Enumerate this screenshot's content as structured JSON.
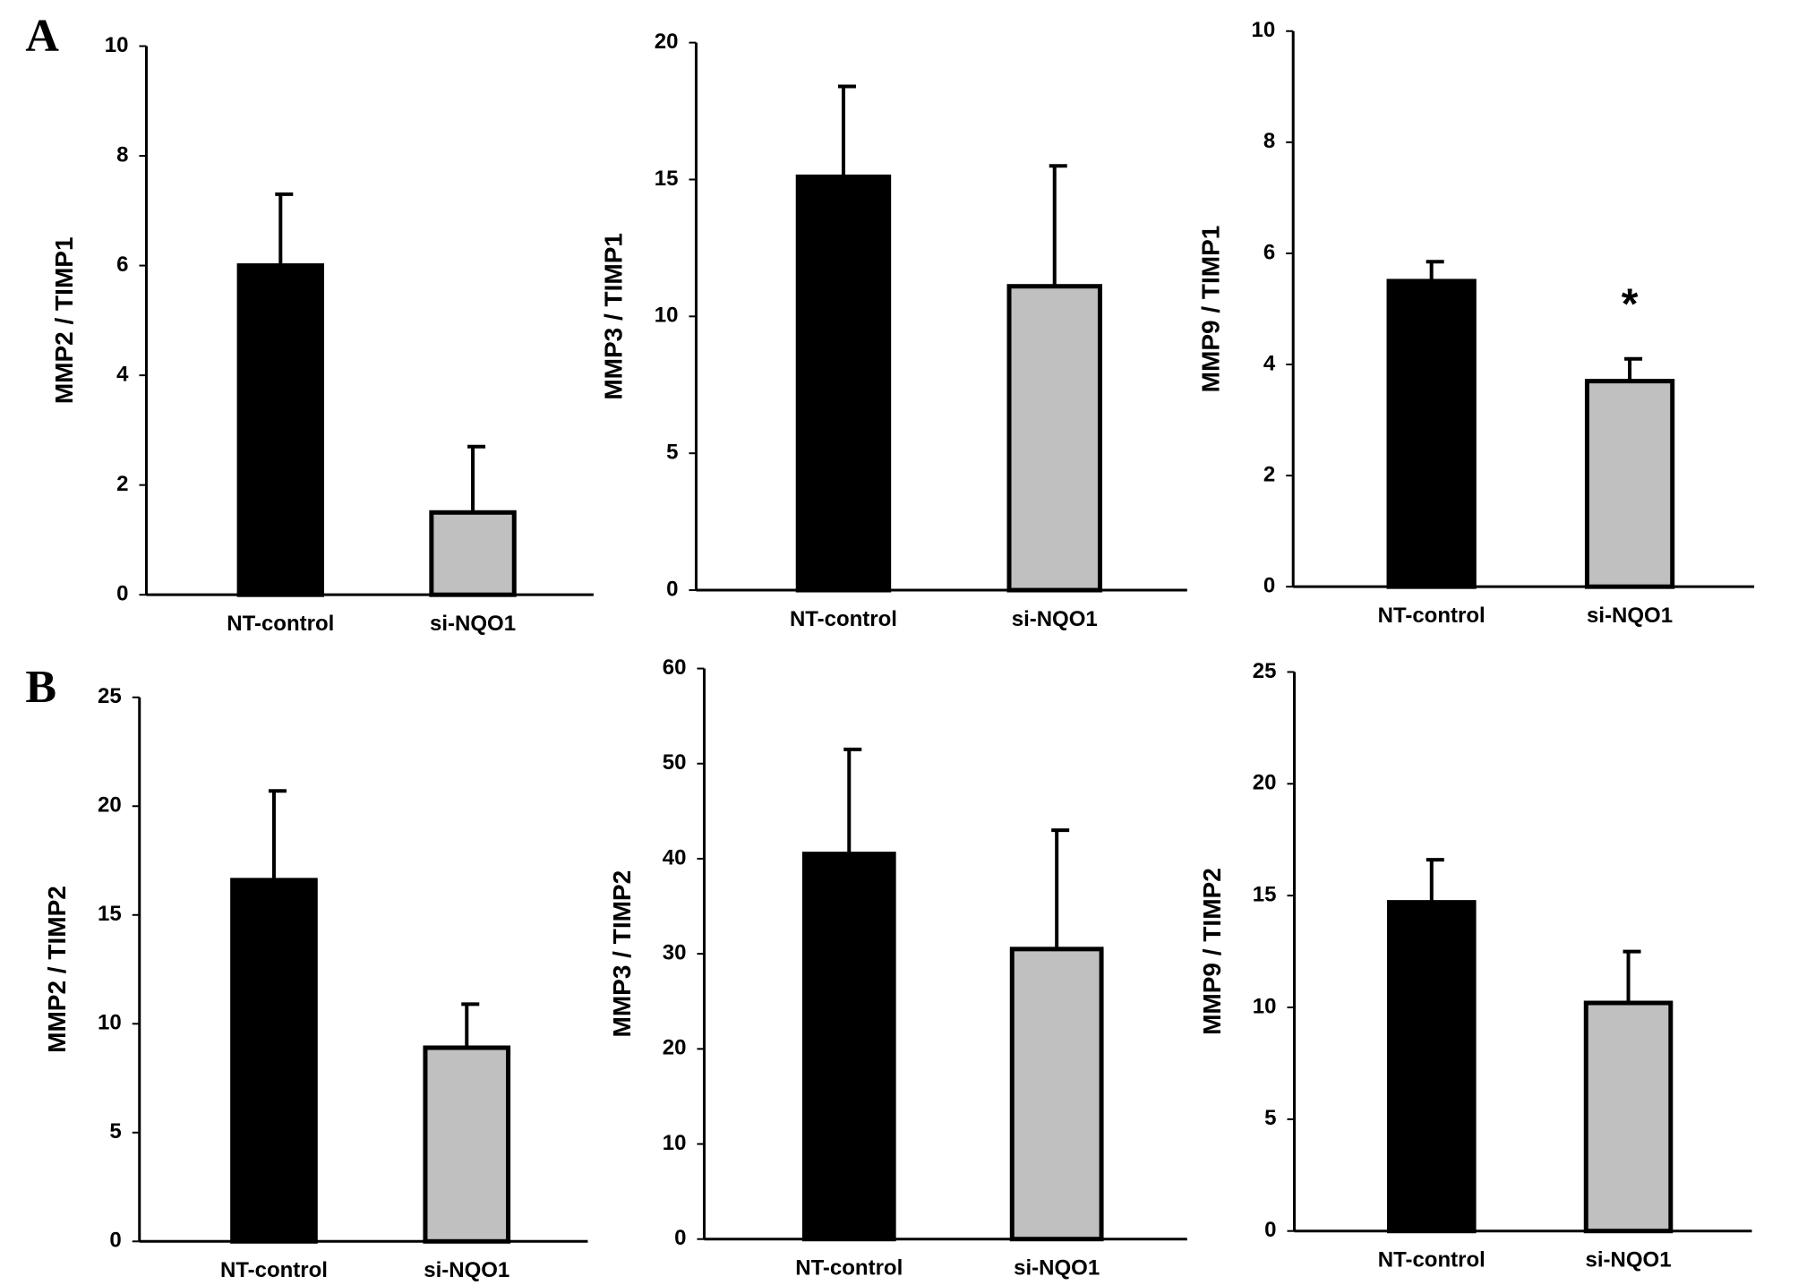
{
  "chart_data": [
    {
      "type": "bar",
      "panel": "A",
      "ylabel": "MMP2 / TIMP1",
      "categories": [
        "NT-control",
        "si-NQO1"
      ],
      "values": [
        6.0,
        1.5
      ],
      "errors": [
        1.3,
        1.2
      ],
      "colors": [
        "#000000",
        "#c0c0c0"
      ],
      "ylim": [
        0,
        10
      ],
      "yticks": [
        0,
        2,
        4,
        6,
        8,
        10
      ]
    },
    {
      "type": "bar",
      "ylabel": "MMP3 / TIMP1",
      "categories": [
        "NT-control",
        "si-NQO1"
      ],
      "values": [
        15.1,
        11.1
      ],
      "errors": [
        3.3,
        4.4
      ],
      "colors": [
        "#000000",
        "#c0c0c0"
      ],
      "ylim": [
        0,
        20
      ],
      "yticks": [
        0,
        5,
        10,
        15,
        20
      ]
    },
    {
      "type": "bar",
      "ylabel": "MMP9 / TIMP1",
      "categories": [
        "NT-control",
        "si-NQO1"
      ],
      "values": [
        5.5,
        3.7
      ],
      "errors": [
        0.35,
        0.4
      ],
      "value_annotations": [
        null,
        "*"
      ],
      "colors": [
        "#000000",
        "#c0c0c0"
      ],
      "ylim": [
        0,
        10
      ],
      "yticks": [
        0,
        2,
        4,
        6,
        8,
        10
      ]
    },
    {
      "type": "bar",
      "panel": "B",
      "ylabel": "MMP2 / TIMP2",
      "categories": [
        "NT-control",
        "si-NQO1"
      ],
      "values": [
        16.6,
        8.9
      ],
      "errors": [
        4.1,
        2.0
      ],
      "colors": [
        "#000000",
        "#c0c0c0"
      ],
      "ylim": [
        0,
        25
      ],
      "yticks": [
        0,
        5,
        10,
        15,
        20,
        25
      ]
    },
    {
      "type": "bar",
      "ylabel": "MMP3 / TIMP2",
      "categories": [
        "NT-control",
        "si-NQO1"
      ],
      "values": [
        40.5,
        30.5
      ],
      "errors": [
        11,
        12.5
      ],
      "colors": [
        "#000000",
        "#c0c0c0"
      ],
      "ylim": [
        0,
        60
      ],
      "yticks": [
        0,
        10,
        20,
        30,
        40,
        50,
        60
      ]
    },
    {
      "type": "bar",
      "ylabel": "MMP9 / TIMP2",
      "categories": [
        "NT-control",
        "si-NQO1"
      ],
      "values": [
        14.7,
        10.2
      ],
      "errors": [
        1.9,
        2.3
      ],
      "colors": [
        "#000000",
        "#c0c0c0"
      ],
      "ylim": [
        0,
        25
      ],
      "yticks": [
        0,
        5,
        10,
        15,
        20,
        25
      ]
    }
  ]
}
